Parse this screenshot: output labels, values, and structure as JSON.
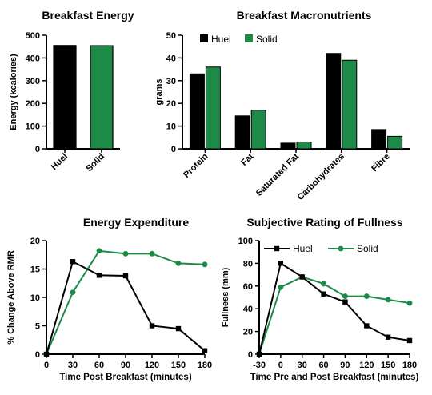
{
  "colors": {
    "huel": "#000000",
    "solid": "#1d8a47"
  },
  "chart_data": [
    {
      "type": "bar",
      "title": "Breakfast Energy",
      "ylabel": "Energy (kcalories)",
      "xlabel": "",
      "ylim": [
        0,
        500
      ],
      "yticks": [
        0,
        100,
        200,
        300,
        400,
        500
      ],
      "categories": [
        "Huel",
        "Solid"
      ],
      "values": [
        455,
        454
      ],
      "bar_colors": [
        "#000000",
        "#1d8a47"
      ]
    },
    {
      "type": "bar",
      "title": "Breakfast Macronutrients",
      "ylabel": "grams",
      "xlabel": "",
      "ylim": [
        0,
        50
      ],
      "yticks": [
        0,
        10,
        20,
        30,
        40,
        50
      ],
      "legend": "top-left",
      "categories": [
        "Protein",
        "Fat",
        "Saturated Fat",
        "Carbohydrates",
        "Fibre"
      ],
      "series": [
        {
          "name": "Huel",
          "color": "#000000",
          "values": [
            33,
            14.5,
            2.5,
            42,
            8.5
          ]
        },
        {
          "name": "Solid",
          "color": "#1d8a47",
          "values": [
            36,
            17,
            3,
            39,
            5.5
          ]
        }
      ]
    },
    {
      "type": "line",
      "title": "Energy Expenditure",
      "ylabel": "% Change Above RMR",
      "xlabel": "Time Post Breakfast (minutes)",
      "xlim": [
        0,
        180
      ],
      "ylim": [
        0,
        20
      ],
      "xticks": [
        0,
        30,
        60,
        90,
        120,
        150,
        180
      ],
      "yticks": [
        0,
        5,
        10,
        15,
        20
      ],
      "x": [
        0,
        30,
        60,
        90,
        120,
        150,
        180
      ],
      "series": [
        {
          "name": "Huel",
          "color": "#000000",
          "marker": "square",
          "values": [
            0,
            16.3,
            13.9,
            13.8,
            5.0,
            4.5,
            0.6
          ]
        },
        {
          "name": "Solid",
          "color": "#1d8a47",
          "marker": "circle",
          "values": [
            0,
            10.9,
            18.2,
            17.7,
            17.7,
            16.0,
            15.8
          ]
        }
      ]
    },
    {
      "type": "line",
      "title": "Subjective Rating of Fullness",
      "ylabel": "Fullness (mm)",
      "xlabel": "Time Pre and Post Breakfast (minutes)",
      "xlim": [
        -30,
        180
      ],
      "ylim": [
        0,
        100
      ],
      "xticks": [
        -30,
        0,
        30,
        60,
        90,
        120,
        150,
        180
      ],
      "yticks": [
        0,
        20,
        40,
        60,
        80,
        100
      ],
      "legend": "top-right",
      "x": [
        -30,
        0,
        30,
        60,
        90,
        120,
        150,
        180
      ],
      "series": [
        {
          "name": "Huel",
          "color": "#000000",
          "marker": "square",
          "values": [
            0,
            80,
            68,
            53,
            46,
            25,
            15,
            12
          ]
        },
        {
          "name": "Solid",
          "color": "#1d8a47",
          "marker": "circle",
          "values": [
            0,
            59,
            68,
            62,
            51,
            51,
            48,
            45
          ]
        }
      ]
    }
  ]
}
